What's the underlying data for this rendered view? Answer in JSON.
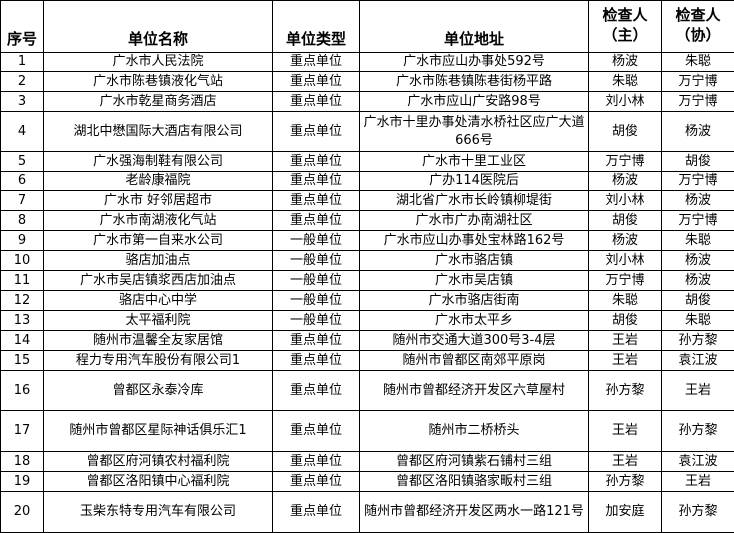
{
  "headers": [
    "序号",
    "单位名称",
    "单位类型",
    "单位地址",
    "检查人（主）",
    "检查人（协）"
  ],
  "header_lines": {
    "inspector_main": [
      "检查人",
      "（主）"
    ],
    "inspector_assist": [
      "检查人",
      "（协）"
    ]
  },
  "rows": [
    {
      "no": "1",
      "name": "广水市人民法院",
      "type": "重点单位",
      "address": "广水市应山办事处592号",
      "main": "杨波",
      "assist": "朱聪"
    },
    {
      "no": "2",
      "name": "广水市陈巷镇液化气站",
      "type": "重点单位",
      "address": "广水市陈巷镇陈巷街杨平路",
      "main": "朱聪",
      "assist": "万宁博"
    },
    {
      "no": "3",
      "name": "广水市乾星商务酒店",
      "type": "重点单位",
      "address": "广水市应山广安路98号",
      "main": "刘小林",
      "assist": "万宁博"
    },
    {
      "no": "4",
      "name": "湖北中懋国际大酒店有限公司",
      "type": "重点单位",
      "address": "广水市十里办事处清水桥社区应广大道666号",
      "main": "胡俊",
      "assist": "杨波"
    },
    {
      "no": "5",
      "name": "广水强海制鞋有限公司",
      "type": "重点单位",
      "address": "广水市十里工业区",
      "main": "万宁博",
      "assist": "胡俊"
    },
    {
      "no": "6",
      "name": "老龄康福院",
      "type": "重点单位",
      "address": "广办114医院后",
      "main": "杨波",
      "assist": "万宁博"
    },
    {
      "no": "7",
      "name": "广水市 好邻居超市",
      "type": "重点单位",
      "address": "湖北省广水市长岭镇柳堤街",
      "main": "刘小林",
      "assist": "杨波"
    },
    {
      "no": "8",
      "name": "广水市南湖液化气站",
      "type": "重点单位",
      "address": "广水市广办南湖社区",
      "main": "胡俊",
      "assist": "万宁博"
    },
    {
      "no": "9",
      "name": "广水市第一自来水公司",
      "type": "一般单位",
      "address": "广水市应山办事处宝林路162号",
      "main": "杨波",
      "assist": "朱聪"
    },
    {
      "no": "10",
      "name": "骆店加油点",
      "type": "一般单位",
      "address": "广水市骆店镇",
      "main": "刘小林",
      "assist": "杨波"
    },
    {
      "no": "11",
      "name": "广水市吴店镇浆西店加油点",
      "type": "一般单位",
      "address": "广水市吴店镇",
      "main": "万宁博",
      "assist": "杨波"
    },
    {
      "no": "12",
      "name": "骆店中心中学",
      "type": "一般单位",
      "address": "广水市骆店街南",
      "main": "朱聪",
      "assist": "胡俊"
    },
    {
      "no": "13",
      "name": "太平福利院",
      "type": "一般单位",
      "address": "广水市太平乡",
      "main": "胡俊",
      "assist": "朱聪"
    },
    {
      "no": "14",
      "name": "随州市温馨全友家居馆",
      "type": "重点单位",
      "address": "随州市交通大道300号3-4层",
      "main": "王岩",
      "assist": "孙方黎"
    },
    {
      "no": "15",
      "name": "程力专用汽车股份有限公司1",
      "type": "重点单位",
      "address": "随州市曾都区南郊平原岗",
      "main": "王岩",
      "assist": "袁江波"
    },
    {
      "no": "16",
      "name": "曾都区永泰冷库",
      "type": "重点单位",
      "address": "随州市曾都经济开发区六草屋村",
      "main": "孙方黎",
      "assist": "王岩"
    },
    {
      "no": "17",
      "name": "随州市曾都区星际神话俱乐汇1",
      "type": "重点单位",
      "address": "随州市二桥桥头",
      "main": "王岩",
      "assist": "孙方黎"
    },
    {
      "no": "18",
      "name": "曾都区府河镇农村福利院",
      "type": "重点单位",
      "address": "曾都区府河镇紫石铺村三组",
      "main": "王岩",
      "assist": "袁江波"
    },
    {
      "no": "19",
      "name": "曾都区洛阳镇中心福利院",
      "type": "重点单位",
      "address": "曾都区洛阳镇骆家畈村三组",
      "main": "孙方黎",
      "assist": "王岩"
    },
    {
      "no": "20",
      "name": "玉柴东特专用汽车有限公司",
      "type": "重点单位",
      "address": "随州市曾都经济开发区两水一路121号",
      "main": "加安庭",
      "assist": "孙方黎"
    }
  ]
}
